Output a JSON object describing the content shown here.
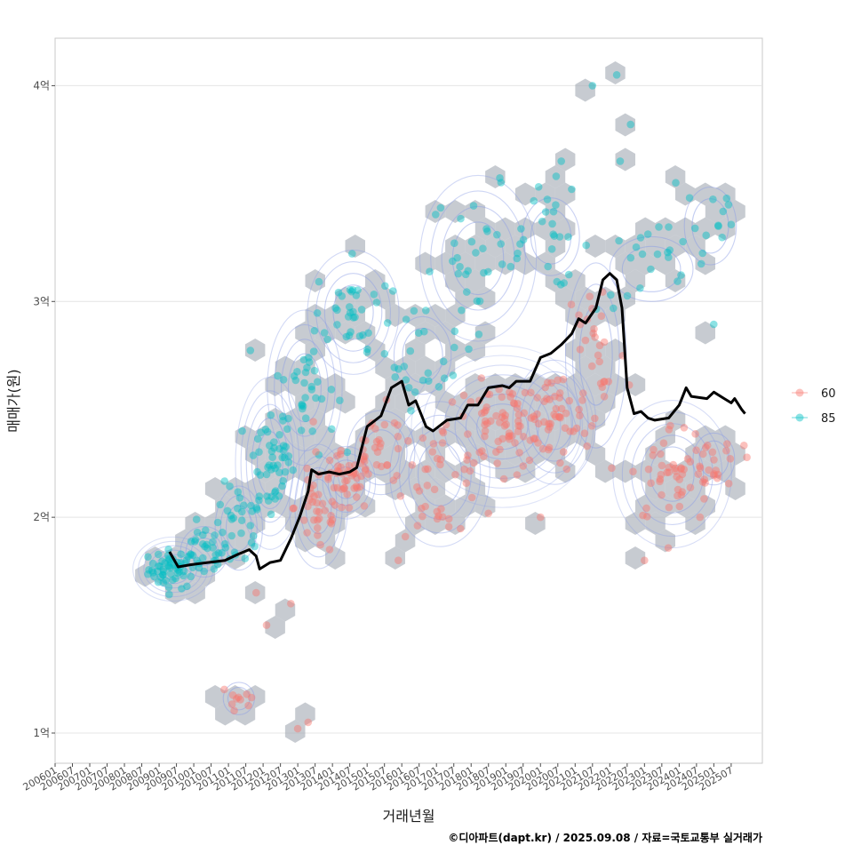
{
  "chart_data": {
    "type": "scatter",
    "xlabel": "거래년월",
    "ylabel": "매매가(원)",
    "caption": "©디아파트(dapt.kr) / 2025.09.08 / 자료=국토교통부 실거래가",
    "x_range": [
      2006.0,
      2026.4
    ],
    "y_range": [
      0.86,
      4.22
    ],
    "y_ticks": [
      {
        "value": 1,
        "label": "1억"
      },
      {
        "value": 2,
        "label": "2억"
      },
      {
        "value": 3,
        "label": "3억"
      },
      {
        "value": 4,
        "label": "4억"
      }
    ],
    "x_ticks": [
      "200601",
      "200607",
      "200701",
      "200707",
      "200801",
      "200807",
      "200901",
      "200907",
      "201001",
      "201007",
      "201101",
      "201107",
      "201201",
      "201207",
      "201301",
      "201307",
      "201401",
      "201407",
      "201501",
      "201507",
      "201601",
      "201607",
      "201701",
      "201707",
      "201801",
      "201807",
      "201901",
      "201907",
      "202001",
      "202007",
      "202101",
      "202107",
      "202201",
      "202207",
      "202301",
      "202307",
      "202401",
      "202407",
      "202501",
      "202507"
    ],
    "legend": [
      {
        "name": "60",
        "color": "#F8766D"
      },
      {
        "name": "85",
        "color": "#00BFC4"
      }
    ],
    "hexbin_color": "#A9AFB9",
    "contour_color": "#8C9EE6",
    "trend_color": "#000000",
    "clusters": [
      {
        "series": "85",
        "x": 2009.4,
        "y": 1.76,
        "sx": 0.35,
        "sy": 0.045,
        "n": 55
      },
      {
        "series": "85",
        "x": 2010.3,
        "y": 1.84,
        "sx": 0.35,
        "sy": 0.06,
        "n": 30
      },
      {
        "series": "85",
        "x": 2011.3,
        "y": 1.95,
        "sx": 0.35,
        "sy": 0.1,
        "n": 28
      },
      {
        "series": "85",
        "x": 2012.2,
        "y": 2.25,
        "sx": 0.35,
        "sy": 0.14,
        "n": 45
      },
      {
        "series": "85",
        "x": 2013.2,
        "y": 2.6,
        "sx": 0.45,
        "sy": 0.15,
        "n": 40
      },
      {
        "series": "85",
        "x": 2014.6,
        "y": 2.95,
        "sx": 0.55,
        "sy": 0.12,
        "n": 35
      },
      {
        "series": "85",
        "x": 2016.6,
        "y": 2.75,
        "sx": 0.55,
        "sy": 0.12,
        "n": 22
      },
      {
        "series": "85",
        "x": 2018.2,
        "y": 3.2,
        "sx": 0.7,
        "sy": 0.16,
        "n": 35
      },
      {
        "series": "85",
        "x": 2020.3,
        "y": 3.3,
        "sx": 0.55,
        "sy": 0.12,
        "n": 22
      },
      {
        "series": "85",
        "x": 2023.2,
        "y": 3.15,
        "sx": 0.8,
        "sy": 0.1,
        "n": 22
      },
      {
        "series": "85",
        "x": 2024.9,
        "y": 3.35,
        "sx": 0.5,
        "sy": 0.12,
        "n": 12
      },
      {
        "series": "60",
        "x": 2011.3,
        "y": 1.16,
        "sx": 0.3,
        "sy": 0.05,
        "n": 10
      },
      {
        "series": "60",
        "x": 2013.6,
        "y": 2.05,
        "sx": 0.35,
        "sy": 0.12,
        "n": 35
      },
      {
        "series": "60",
        "x": 2014.4,
        "y": 2.16,
        "sx": 0.35,
        "sy": 0.07,
        "n": 40
      },
      {
        "series": "60",
        "x": 2015.4,
        "y": 2.3,
        "sx": 0.5,
        "sy": 0.1,
        "n": 30
      },
      {
        "series": "60",
        "x": 2017.1,
        "y": 2.2,
        "sx": 0.6,
        "sy": 0.14,
        "n": 40
      },
      {
        "series": "60",
        "x": 2018.9,
        "y": 2.42,
        "sx": 0.7,
        "sy": 0.1,
        "n": 75
      },
      {
        "series": "60",
        "x": 2020.4,
        "y": 2.44,
        "sx": 0.5,
        "sy": 0.12,
        "n": 40
      },
      {
        "series": "60",
        "x": 2021.6,
        "y": 2.75,
        "sx": 0.45,
        "sy": 0.22,
        "n": 30
      },
      {
        "series": "60",
        "x": 2023.8,
        "y": 2.2,
        "sx": 0.6,
        "sy": 0.12,
        "n": 45
      },
      {
        "series": "60",
        "x": 2025.0,
        "y": 2.27,
        "sx": 0.4,
        "sy": 0.08,
        "n": 22
      }
    ],
    "extra_points": [
      {
        "series": "85",
        "x": 2021.5,
        "y": 4.0
      },
      {
        "series": "85",
        "x": 2022.2,
        "y": 4.05
      },
      {
        "series": "85",
        "x": 2022.6,
        "y": 3.82
      },
      {
        "series": "85",
        "x": 2020.6,
        "y": 3.65
      },
      {
        "series": "85",
        "x": 2020.9,
        "y": 3.52
      },
      {
        "series": "85",
        "x": 2022.3,
        "y": 3.65
      },
      {
        "series": "85",
        "x": 2023.9,
        "y": 3.55
      },
      {
        "series": "85",
        "x": 2024.3,
        "y": 3.48
      },
      {
        "series": "60",
        "x": 2012.1,
        "y": 1.5
      },
      {
        "series": "60",
        "x": 2012.8,
        "y": 1.6
      },
      {
        "series": "60",
        "x": 2013.0,
        "y": 1.02
      },
      {
        "series": "60",
        "x": 2013.3,
        "y": 1.05
      },
      {
        "series": "60",
        "x": 2015.9,
        "y": 1.8
      },
      {
        "series": "60",
        "x": 2020.0,
        "y": 2.0
      },
      {
        "series": "60",
        "x": 2023.0,
        "y": 1.8
      },
      {
        "series": "60",
        "x": 2011.8,
        "y": 1.65
      },
      {
        "series": "60",
        "x": 2024.6,
        "y": 2.0
      }
    ],
    "trend": [
      [
        2009.3,
        1.84
      ],
      [
        2009.55,
        1.77
      ],
      [
        2009.9,
        1.78
      ],
      [
        2010.4,
        1.79
      ],
      [
        2010.9,
        1.8
      ],
      [
        2011.3,
        1.83
      ],
      [
        2011.6,
        1.85
      ],
      [
        2011.8,
        1.82
      ],
      [
        2011.9,
        1.76
      ],
      [
        2012.2,
        1.79
      ],
      [
        2012.5,
        1.8
      ],
      [
        2012.8,
        1.9
      ],
      [
        2013.05,
        2.0
      ],
      [
        2013.3,
        2.12
      ],
      [
        2013.4,
        2.22
      ],
      [
        2013.6,
        2.2
      ],
      [
        2013.9,
        2.21
      ],
      [
        2014.2,
        2.2
      ],
      [
        2014.5,
        2.21
      ],
      [
        2014.7,
        2.23
      ],
      [
        2015.0,
        2.42
      ],
      [
        2015.4,
        2.47
      ],
      [
        2015.7,
        2.6
      ],
      [
        2016.0,
        2.63
      ],
      [
        2016.2,
        2.52
      ],
      [
        2016.4,
        2.54
      ],
      [
        2016.7,
        2.42
      ],
      [
        2016.9,
        2.4
      ],
      [
        2017.3,
        2.45
      ],
      [
        2017.7,
        2.46
      ],
      [
        2017.9,
        2.52
      ],
      [
        2018.2,
        2.52
      ],
      [
        2018.5,
        2.6
      ],
      [
        2018.9,
        2.61
      ],
      [
        2019.1,
        2.6
      ],
      [
        2019.3,
        2.63
      ],
      [
        2019.7,
        2.63
      ],
      [
        2020.0,
        2.74
      ],
      [
        2020.3,
        2.76
      ],
      [
        2020.6,
        2.8
      ],
      [
        2020.9,
        2.85
      ],
      [
        2021.1,
        2.92
      ],
      [
        2021.3,
        2.9
      ],
      [
        2021.6,
        2.97
      ],
      [
        2021.8,
        3.1
      ],
      [
        2022.0,
        3.13
      ],
      [
        2022.2,
        3.1
      ],
      [
        2022.35,
        2.97
      ],
      [
        2022.5,
        2.6
      ],
      [
        2022.7,
        2.48
      ],
      [
        2022.9,
        2.49
      ],
      [
        2023.1,
        2.46
      ],
      [
        2023.3,
        2.45
      ],
      [
        2023.7,
        2.46
      ],
      [
        2024.0,
        2.52
      ],
      [
        2024.2,
        2.6
      ],
      [
        2024.35,
        2.56
      ],
      [
        2024.8,
        2.55
      ],
      [
        2025.0,
        2.58
      ],
      [
        2025.3,
        2.55
      ],
      [
        2025.5,
        2.53
      ],
      [
        2025.6,
        2.55
      ],
      [
        2025.8,
        2.5
      ],
      [
        2025.9,
        2.48
      ]
    ]
  }
}
